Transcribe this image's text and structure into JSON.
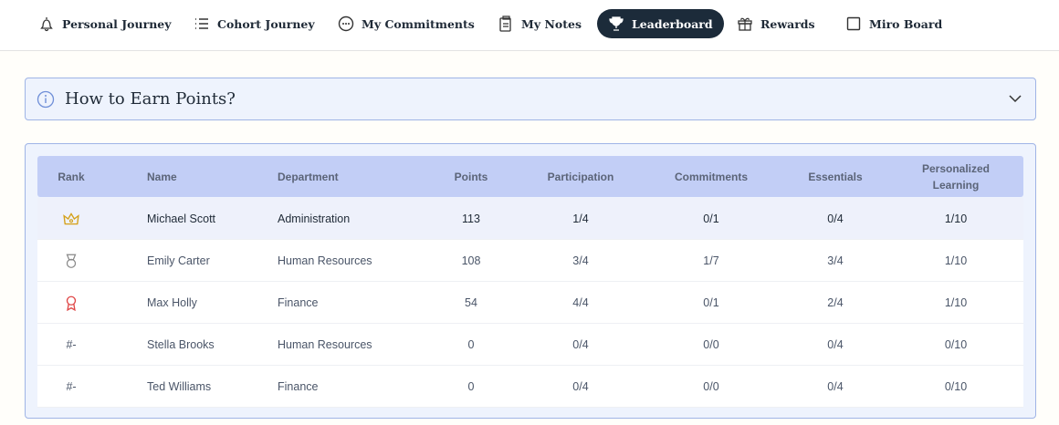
{
  "nav": {
    "tabs": [
      "Personal Journey",
      "Cohort Journey",
      "My Commitments",
      "My Notes",
      "Leaderboard",
      "Rewards",
      "Miro Board"
    ],
    "active": "Leaderboard"
  },
  "accordion": {
    "title": "How to Earn Points?"
  },
  "table": {
    "headers": [
      "Rank",
      "Name",
      "Department",
      "Points",
      "Participation",
      "Commitments",
      "Essentials",
      "Personalized Learning"
    ],
    "rows": [
      {
        "cells": [
          "Michael Scott",
          "Administration",
          113,
          "1/4",
          "0/1",
          "0/4",
          "1/10"
        ]
      },
      {
        "cells": [
          "Emily Carter",
          "Human Resources",
          108,
          "3/4",
          "1/7",
          "3/4",
          "1/10"
        ]
      },
      {
        "cells": [
          "Max Holly",
          "Finance",
          54,
          "4/4",
          "0/1",
          "2/4",
          "1/10"
        ]
      },
      {
        "rank": "#-",
        "cells": [
          "Stella Brooks",
          "Human Resources",
          0,
          "0/4",
          "0/0",
          "0/4",
          "0/10"
        ]
      },
      {
        "rank": "#-",
        "cells": [
          "Ted Williams",
          "Finance",
          0,
          "0/4",
          "0/0",
          "0/4",
          "0/10"
        ]
      }
    ]
  }
}
